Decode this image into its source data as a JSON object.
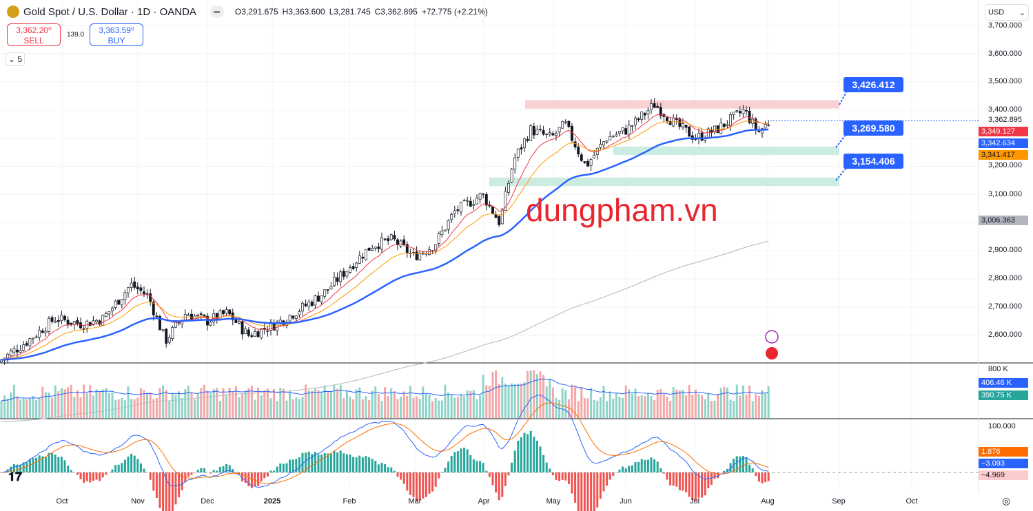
{
  "header": {
    "title": "Gold Spot / U.S. Dollar · 1D · OANDA",
    "open": "O3,291.675",
    "high": "H3,363.600",
    "low": "L3,281.745",
    "close": "C3,362.895",
    "change": "+72.775 (+2.21%)"
  },
  "trade": {
    "sell_price": "3,362.20⁰",
    "sell_label": "SELL",
    "spread": "139.0",
    "buy_price": "3,363.59⁰",
    "buy_label": "BUY"
  },
  "indicators_collapse": "5",
  "currency": "USD",
  "watermark": "dungpham.vn",
  "zones": {
    "resistance": "3,426.412",
    "support1": "3,269.580",
    "support2": "3,154.406"
  },
  "price_axis": [
    "3,700.000",
    "3,600.000",
    "3,500.000",
    "3,400.000",
    "3,200.000",
    "3,100.000",
    "2,900.000",
    "2,800.000",
    "2,700.000",
    "2,600.000"
  ],
  "price_labels": {
    "last": "3,362.895",
    "ma_red": "3,349.127",
    "ma_blue": "3,342.634",
    "ma_orange": "3,341.417",
    "ma_gray": "3,006.363"
  },
  "volume": {
    "axis": "800 K",
    "ma": "406.46 K",
    "vol": "390.75 K"
  },
  "osc": {
    "axis": "100.000",
    "v1": "1.876",
    "v2": "−3.093",
    "v3": "−4.969"
  },
  "time_axis": [
    "Oct",
    "Nov",
    "Dec",
    "2025",
    "Feb",
    "Mar",
    "Apr",
    "May",
    "Jun",
    "Jul",
    "Aug",
    "Sep",
    "Oct"
  ],
  "colors": {
    "up": "#26a69a",
    "down": "#ef5350",
    "ma_red": "#f23645",
    "ma_blue": "#2962ff",
    "ma_orange": "#ff9800",
    "ma_gray": "#b2b5be"
  },
  "chart_data": {
    "type": "candlestick",
    "anchors_x_close": [
      [
        0,
        2510
      ],
      [
        40,
        2580
      ],
      [
        80,
        2660
      ],
      [
        120,
        2640
      ],
      [
        150,
        2660
      ],
      [
        190,
        2780
      ],
      [
        215,
        2740
      ],
      [
        240,
        2580
      ],
      [
        270,
        2680
      ],
      [
        300,
        2650
      ],
      [
        330,
        2680
      ],
      [
        360,
        2600
      ],
      [
        400,
        2640
      ],
      [
        440,
        2700
      ],
      [
        470,
        2750
      ],
      [
        510,
        2850
      ],
      [
        540,
        2920
      ],
      [
        570,
        2940
      ],
      [
        600,
        2880
      ],
      [
        630,
        2920
      ],
      [
        660,
        3040
      ],
      [
        700,
        3100
      ],
      [
        725,
        3000
      ],
      [
        745,
        3220
      ],
      [
        770,
        3330
      ],
      [
        800,
        3300
      ],
      [
        820,
        3350
      ],
      [
        850,
        3200
      ],
      [
        880,
        3300
      ],
      [
        910,
        3330
      ],
      [
        950,
        3420
      ],
      [
        980,
        3350
      ],
      [
        1010,
        3300
      ],
      [
        1040,
        3330
      ],
      [
        1080,
        3400
      ],
      [
        1100,
        3320
      ],
      [
        1118,
        3363
      ]
    ]
  }
}
